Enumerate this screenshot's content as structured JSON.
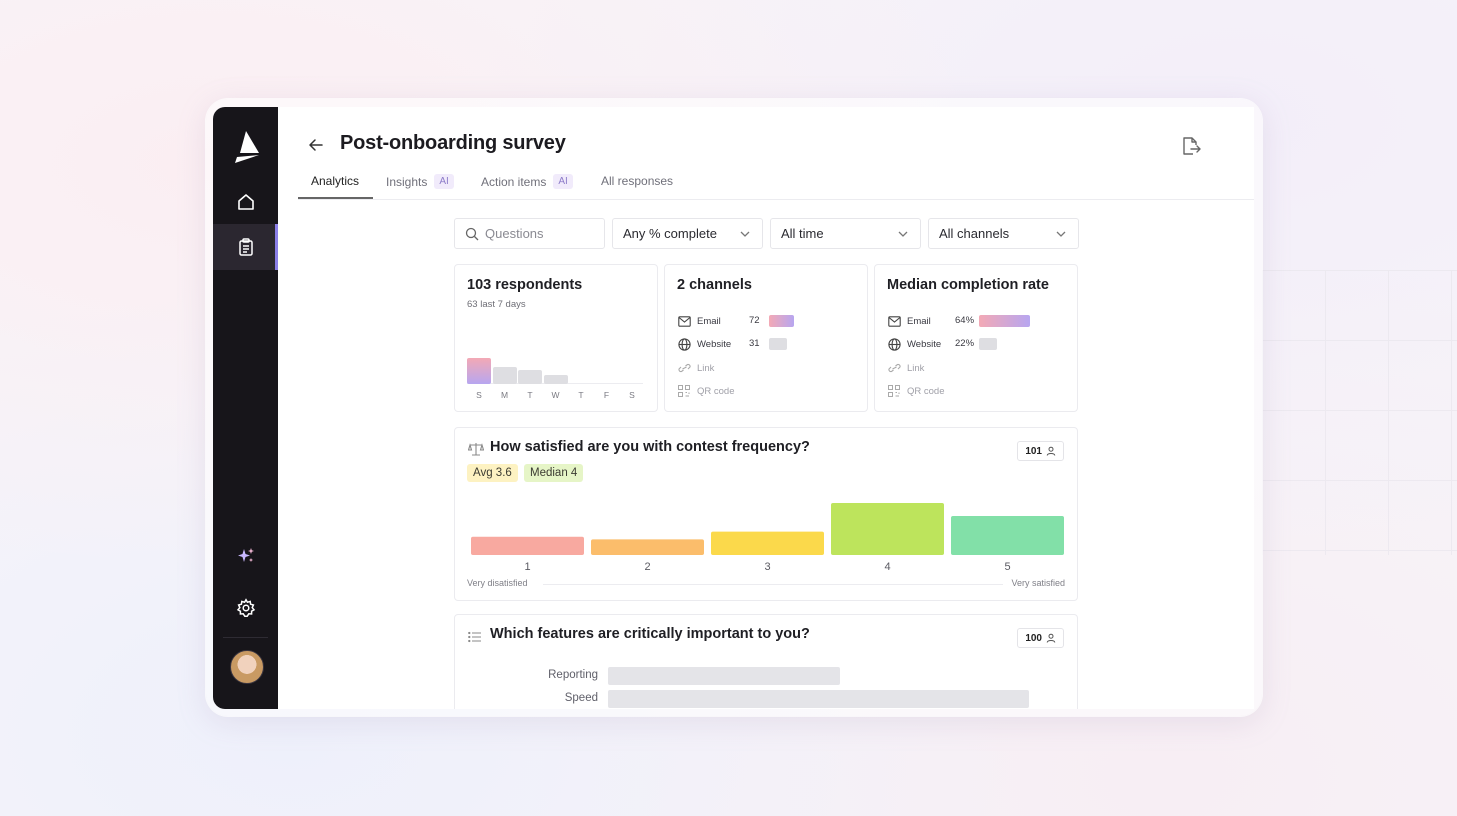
{
  "header": {
    "title": "Post-onboarding survey"
  },
  "tabs": [
    {
      "label": "Analytics",
      "ai": ""
    },
    {
      "label": "Insights",
      "ai": "AI"
    },
    {
      "label": "Action items",
      "ai": "AI"
    },
    {
      "label": "All responses",
      "ai": ""
    }
  ],
  "filters": {
    "search_placeholder": "Questions",
    "completion": "Any % complete",
    "time": "All time",
    "channels": "All channels"
  },
  "respondents": {
    "title": "103 respondents",
    "subtitle": "63 last 7 days",
    "days": [
      "S",
      "M",
      "T",
      "W",
      "T",
      "F",
      "S"
    ],
    "daily_relative": [
      1.0,
      0.65,
      0.52,
      0.33,
      0,
      0,
      0
    ]
  },
  "channels": {
    "title": "2 channels",
    "rows": [
      {
        "name": "Email",
        "count": "72",
        "fraction": 0.7,
        "style": "grad"
      },
      {
        "name": "Website",
        "count": "31",
        "fraction": 0.3,
        "style": "gray"
      },
      {
        "name": "Link",
        "count": "",
        "fraction": 0,
        "style": "none"
      },
      {
        "name": "QR code",
        "count": "",
        "fraction": 0,
        "style": "none"
      }
    ]
  },
  "completion": {
    "title": "Median completion rate",
    "rows": [
      {
        "name": "Email",
        "value": "64%",
        "fraction": 0.64,
        "style": "grad"
      },
      {
        "name": "Website",
        "value": "22%",
        "fraction": 0.22,
        "style": "gray"
      },
      {
        "name": "Link",
        "value": "",
        "fraction": 0,
        "style": "none"
      },
      {
        "name": "QR code",
        "value": "",
        "fraction": 0,
        "style": "none"
      }
    ]
  },
  "q1": {
    "title": "How satisfied are you with contest frequency?",
    "responses": "101",
    "avg": "Avg 3.6",
    "median": "Median 4",
    "low_label": "Very disatisfied",
    "high_label": "Very satisfied",
    "colors": [
      "#f8a9a0",
      "#fbbd6b",
      "#fbd94b",
      "#bde45c",
      "#82e0a8"
    ],
    "avg_color": "#fdf2c2",
    "median_color": "#e6f5c7"
  },
  "q2": {
    "title": "Which features are critically important to you?",
    "responses": "100",
    "rows": [
      {
        "label": "Reporting",
        "fraction": 0.55
      },
      {
        "label": "Speed",
        "fraction": 1.0
      }
    ]
  },
  "chart_data": {
    "type": "bar",
    "categories": [
      "1",
      "2",
      "3",
      "4",
      "5"
    ],
    "values": [
      7,
      6,
      9,
      20,
      15
    ],
    "title": "How satisfied are you with contest frequency?",
    "xlabel": "",
    "ylabel": ""
  }
}
